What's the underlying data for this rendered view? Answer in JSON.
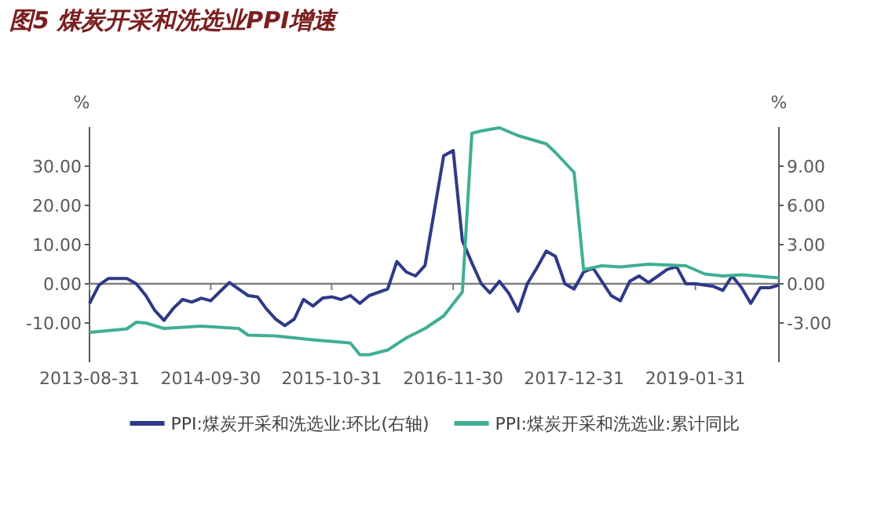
{
  "chart_data": {
    "type": "line",
    "title": "图5 煤炭开采和洗选业PPI增速",
    "ylabel": "%",
    "y2label": "%",
    "legend": "bottom",
    "xlim": [
      "2013-08",
      "2019-10"
    ],
    "xticks": [
      {
        "value": "2013-08",
        "label": "2013-08-31"
      },
      {
        "value": "2014-09",
        "label": "2014-09-30"
      },
      {
        "value": "2015-10",
        "label": "2015-10-31"
      },
      {
        "value": "2016-11",
        "label": "2016-11-30"
      },
      {
        "value": "2017-12",
        "label": "2017-12-31"
      },
      {
        "value": "2019-01",
        "label": "2019-01-31"
      }
    ],
    "ylim": [
      -20,
      40
    ],
    "yticks": [
      {
        "value": -10,
        "label": "-10.00"
      },
      {
        "value": 0,
        "label": "0.00"
      },
      {
        "value": 10,
        "label": "10.00"
      },
      {
        "value": 20,
        "label": "20.00"
      },
      {
        "value": 30,
        "label": "30.00"
      }
    ],
    "y2lim": [
      -6,
      12
    ],
    "y2ticks": [
      {
        "value": -3,
        "label": "-3.00"
      },
      {
        "value": 0,
        "label": "0.00"
      },
      {
        "value": 3,
        "label": "3.00"
      },
      {
        "value": 6,
        "label": "6.00"
      },
      {
        "value": 9,
        "label": "9.00"
      }
    ],
    "series": [
      {
        "name": "PPI:煤炭开采和洗选业:环比(右轴)",
        "color": "#2e3a87",
        "axis": "y2",
        "x": [
          "2013-08",
          "2013-09",
          "2013-10",
          "2013-12",
          "2014-01",
          "2014-02",
          "2014-03",
          "2014-04",
          "2014-05",
          "2014-06",
          "2014-07",
          "2014-08",
          "2014-09",
          "2014-10",
          "2014-11",
          "2014-12",
          "2015-01",
          "2015-02",
          "2015-03",
          "2015-04",
          "2015-05",
          "2015-06",
          "2015-07",
          "2015-08",
          "2015-09",
          "2015-10",
          "2015-11",
          "2015-12",
          "2016-01",
          "2016-02",
          "2016-04",
          "2016-05",
          "2016-06",
          "2016-07",
          "2016-08",
          "2016-10",
          "2016-11",
          "2016-12",
          "2017-01",
          "2017-02",
          "2017-03",
          "2017-04",
          "2017-05",
          "2017-06",
          "2017-07",
          "2017-08",
          "2017-09",
          "2017-10",
          "2017-11",
          "2017-12",
          "2018-01",
          "2018-02",
          "2018-03",
          "2018-04",
          "2018-05",
          "2018-06",
          "2018-07",
          "2018-08",
          "2018-09",
          "2018-10",
          "2018-11",
          "2018-12",
          "2019-01",
          "2019-03",
          "2019-04",
          "2019-05",
          "2019-06",
          "2019-07",
          "2019-08",
          "2019-09",
          "2019-10"
        ],
        "values": [
          -1.5,
          -0.1,
          0.4,
          0.4,
          0.0,
          -0.9,
          -2.0,
          -2.8,
          -1.9,
          -1.2,
          -1.4,
          -1.1,
          -1.3,
          -0.6,
          0.1,
          -0.4,
          -0.9,
          -1.0,
          -1.9,
          -2.7,
          -3.2,
          -2.7,
          -1.2,
          -1.7,
          -1.1,
          -1.0,
          -1.2,
          -0.9,
          -1.5,
          -0.9,
          -0.4,
          1.7,
          0.9,
          0.6,
          1.4,
          9.8,
          10.2,
          3.3,
          1.6,
          0.0,
          -0.7,
          0.2,
          -0.7,
          -2.1,
          0.0,
          1.2,
          2.5,
          2.1,
          0.0,
          -0.4,
          0.9,
          1.2,
          0.2,
          -0.9,
          -1.3,
          0.2,
          0.6,
          0.1,
          0.6,
          1.1,
          1.3,
          0.0,
          0.0,
          -0.2,
          -0.5,
          0.6,
          -0.3,
          -1.5,
          -0.3,
          -0.3,
          -0.1
        ]
      },
      {
        "name": "PPI:煤炭开采和洗选业:累计同比",
        "color": "#3fae94",
        "x": [
          "2013-08",
          "2013-12",
          "2014-01",
          "2014-02",
          "2014-04",
          "2014-08",
          "2014-12",
          "2015-01",
          "2015-04",
          "2015-06",
          "2015-08",
          "2015-12",
          "2016-01",
          "2016-02",
          "2016-04",
          "2016-06",
          "2016-08",
          "2016-10",
          "2016-12",
          "2017-01",
          "2017-02",
          "2017-04",
          "2017-06",
          "2017-09",
          "2017-10",
          "2017-12",
          "2018-01",
          "2018-03",
          "2018-05",
          "2018-08",
          "2018-12",
          "2019-02",
          "2019-04",
          "2019-06",
          "2019-10"
        ],
        "values": [
          -12.4,
          -11.5,
          -9.8,
          -10.0,
          -11.4,
          -10.8,
          -11.4,
          -13.1,
          -13.3,
          -13.8,
          -14.3,
          -15.1,
          -18.1,
          -18.1,
          -16.9,
          -13.8,
          -11.4,
          -8.2,
          -2.1,
          38.4,
          39.0,
          39.8,
          37.8,
          35.7,
          33.5,
          28.4,
          3.6,
          4.6,
          4.3,
          5.0,
          4.6,
          2.5,
          2.0,
          2.3,
          1.5
        ]
      }
    ]
  }
}
